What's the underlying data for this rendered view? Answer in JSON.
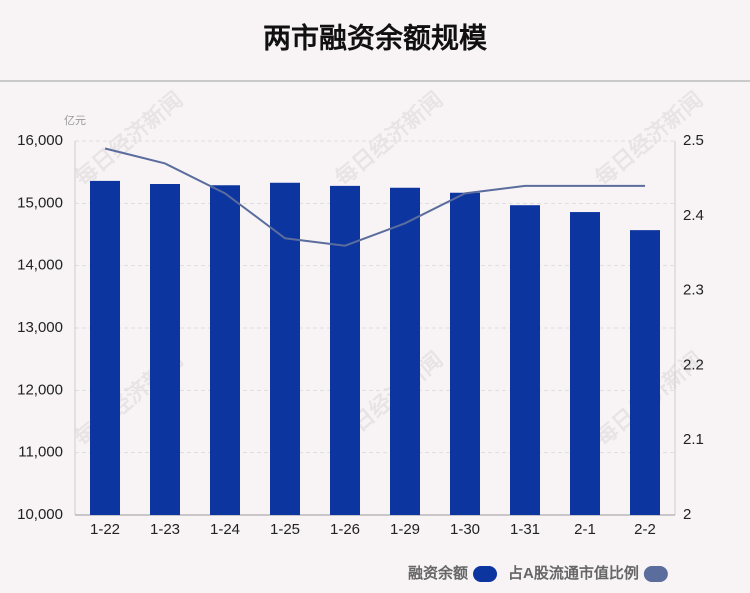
{
  "chart_data": {
    "type": "bar",
    "title": "两市融资余额规模",
    "y_unit": "亿元",
    "watermark": "每日经济新闻",
    "categories": [
      "1-22",
      "1-23",
      "1-24",
      "1-25",
      "1-26",
      "1-29",
      "1-30",
      "1-31",
      "2-1",
      "2-2"
    ],
    "series": [
      {
        "name": "融资余额",
        "color": "#0d35a0",
        "values": [
          15360,
          15310,
          15290,
          15330,
          15280,
          15250,
          15170,
          14970,
          14860,
          14570
        ]
      },
      {
        "name": "占A股流通市值比例",
        "type": "line",
        "axis": "y2",
        "color": "#5b6d9c",
        "values": [
          2.49,
          2.47,
          2.43,
          2.37,
          2.36,
          2.39,
          2.43,
          2.44,
          2.44,
          2.44
        ]
      }
    ],
    "ylim": [
      10000,
      16000
    ],
    "yticks": [
      {
        "value": 10000,
        "label": "10,000"
      },
      {
        "value": 11000,
        "label": "11,000"
      },
      {
        "value": 12000,
        "label": "12,000"
      },
      {
        "value": 13000,
        "label": "13,000"
      },
      {
        "value": 14000,
        "label": "14,000"
      },
      {
        "value": 15000,
        "label": "15,000"
      },
      {
        "value": 16000,
        "label": "16,000"
      }
    ],
    "y2lim": [
      2,
      2.5
    ],
    "y2ticks": [
      2,
      2.1,
      2.2,
      2.3,
      2.4,
      2.5
    ],
    "grid": true
  }
}
